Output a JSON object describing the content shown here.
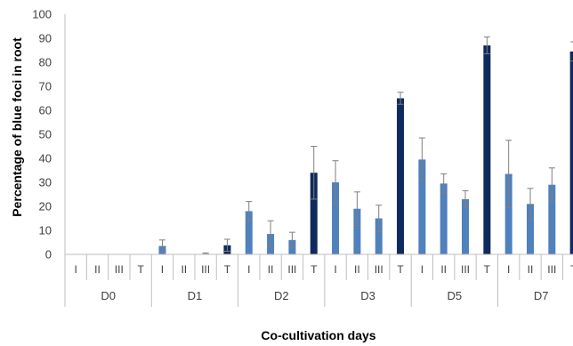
{
  "chart_data": {
    "type": "bar",
    "title": "",
    "xlabel": "Co-cultivation days",
    "ylabel": "Percentage of blue foci in root",
    "ylim": [
      0,
      100
    ],
    "yticks": [
      "0",
      "10",
      "20",
      "30",
      "40",
      "50",
      "60",
      "70",
      "80",
      "90",
      "100"
    ],
    "grid": false,
    "colors": {
      "individual": "#4f81bd",
      "total": "#0f2a5c",
      "error_bar": "#7f7f7f",
      "axis": "#bfbfbf"
    },
    "groups": [
      {
        "label": "D0",
        "bars": [
          {
            "label": "I",
            "value": 0,
            "error": 0
          },
          {
            "label": "II",
            "value": 0,
            "error": 0
          },
          {
            "label": "III",
            "value": 0,
            "error": 0
          },
          {
            "label": "T",
            "value": 0,
            "error": 0
          }
        ]
      },
      {
        "label": "D1",
        "bars": [
          {
            "label": "I",
            "value": 3.5,
            "error": 2.5
          },
          {
            "label": "II",
            "value": 0,
            "error": 0
          },
          {
            "label": "III",
            "value": 0.3,
            "error": 0.3
          },
          {
            "label": "T",
            "value": 3.8,
            "error": 2.5
          }
        ]
      },
      {
        "label": "D2",
        "bars": [
          {
            "label": "I",
            "value": 18,
            "error": 4
          },
          {
            "label": "II",
            "value": 8.5,
            "error": 5.5
          },
          {
            "label": "III",
            "value": 6,
            "error": 3.2
          },
          {
            "label": "T",
            "value": 34,
            "error": 11
          }
        ]
      },
      {
        "label": "D3",
        "bars": [
          {
            "label": "I",
            "value": 30,
            "error": 9
          },
          {
            "label": "II",
            "value": 19,
            "error": 7
          },
          {
            "label": "III",
            "value": 15,
            "error": 5.5
          },
          {
            "label": "T",
            "value": 65,
            "error": 2.5
          }
        ]
      },
      {
        "label": "D5",
        "bars": [
          {
            "label": "I",
            "value": 39.5,
            "error": 9
          },
          {
            "label": "II",
            "value": 29.5,
            "error": 4
          },
          {
            "label": "III",
            "value": 23,
            "error": 3.5
          },
          {
            "label": "T",
            "value": 87,
            "error": 3.5
          }
        ]
      },
      {
        "label": "D7",
        "bars": [
          {
            "label": "I",
            "value": 33.5,
            "error": 14
          },
          {
            "label": "II",
            "value": 21,
            "error": 6.5
          },
          {
            "label": "III",
            "value": 29,
            "error": 7
          },
          {
            "label": "T",
            "value": 84.5,
            "error": 4
          }
        ]
      }
    ]
  }
}
